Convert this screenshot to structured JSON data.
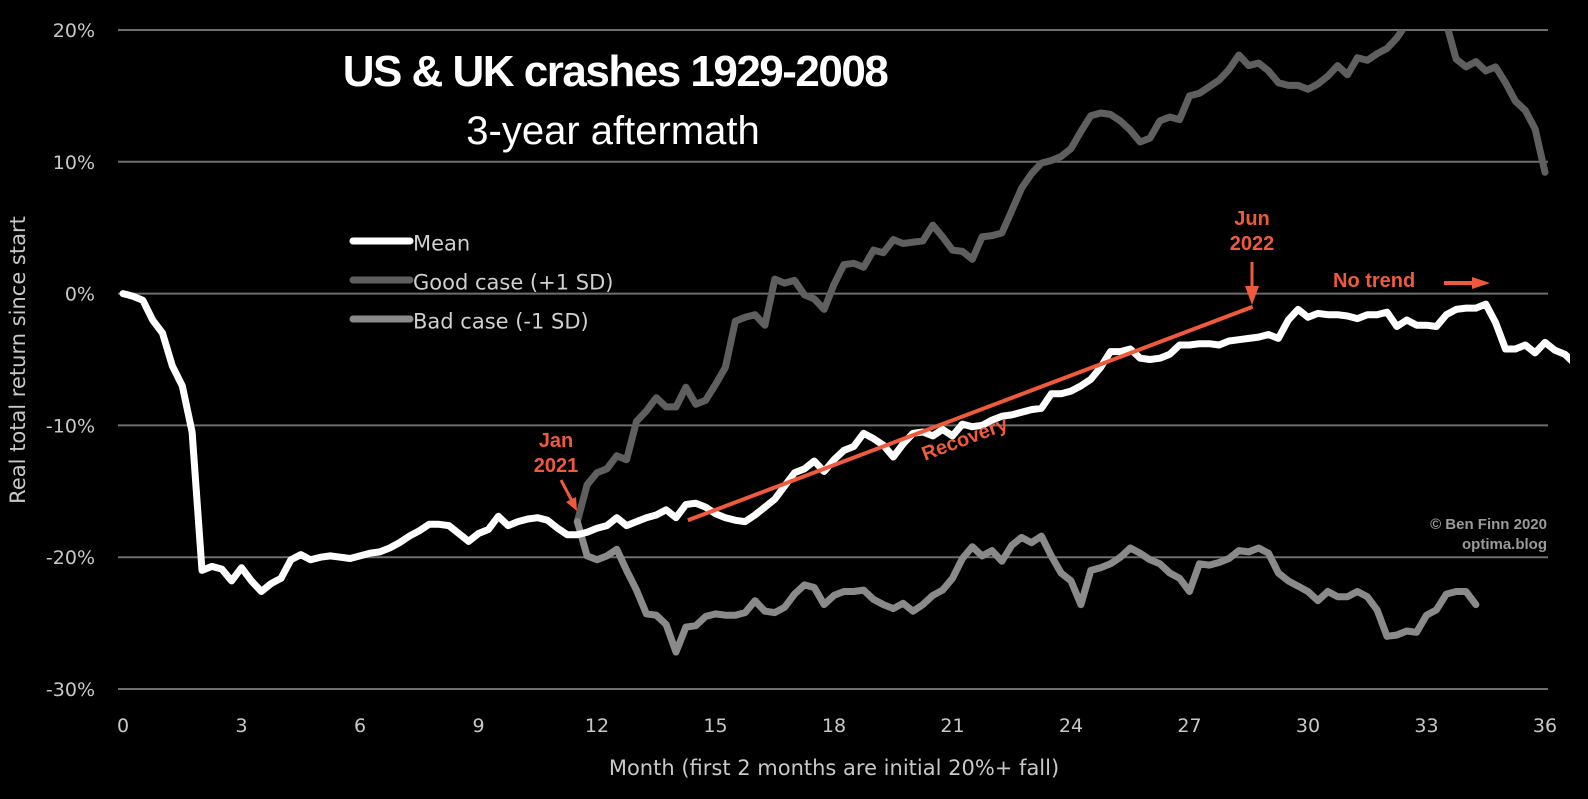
{
  "chart_data": {
    "type": "line",
    "title": "US & UK crashes 1929-2008",
    "subtitle": "3-year aftermath",
    "xlabel": "Month (first 2 months are initial 20%+ fall)",
    "ylabel": "Real total return since start",
    "xlim": [
      0,
      36
    ],
    "ylim": [
      -30,
      20
    ],
    "x_ticks": [
      "0",
      "3",
      "6",
      "9",
      "12",
      "15",
      "18",
      "21",
      "24",
      "27",
      "30",
      "33",
      "36"
    ],
    "x_tick_values": [
      0,
      3,
      6,
      9,
      12,
      15,
      18,
      21,
      24,
      27,
      30,
      33,
      36
    ],
    "y_ticks": [
      "20%",
      "10%",
      "0%",
      "-10%",
      "-20%",
      "-30%"
    ],
    "y_tick_values": [
      20,
      10,
      0,
      -10,
      -20,
      -30
    ],
    "grid": "horizontal",
    "legend": [
      {
        "label": "Mean",
        "color": "#ffffff"
      },
      {
        "label": "Good case (+1 SD)",
        "color": "#5f5f5f"
      },
      {
        "label": "Bad case (-1 SD)",
        "color": "#8a8a8a"
      }
    ],
    "legend_placement": "upper-left",
    "series": [
      {
        "name": "Mean",
        "color": "#ffffff",
        "x_start": 0,
        "x_step": 0.25,
        "values": [
          0,
          -0.2,
          -0.5,
          -2,
          -3,
          -5.5,
          -7,
          -10.5,
          -21,
          -20.7,
          -20.9,
          -21.8,
          -20.8,
          -21.8,
          -22.6,
          -22.0,
          -21.6,
          -20.2,
          -19.8,
          -20.2,
          -20.0,
          -19.9,
          -20.0,
          -20.1,
          -19.9,
          -19.7,
          -19.6,
          -19.3,
          -18.9,
          -18.4,
          -18.0,
          -17.5,
          -17.5,
          -17.6,
          -18.2,
          -18.8,
          -18.2,
          -17.9,
          -16.9,
          -17.6,
          -17.3,
          -17.1,
          -17.0,
          -17.2,
          -17.8,
          -18.3,
          -18.3,
          -18.1,
          -17.8,
          -17.6,
          -17.0,
          -17.6,
          -17.3,
          -17.0,
          -16.8,
          -16.4,
          -17.0,
          -16.0,
          -15.9,
          -16.2,
          -16.7,
          -17.0,
          -17.2,
          -17.3,
          -16.8,
          -16.2,
          -15.6,
          -14.6,
          -13.6,
          -13.3,
          -12.7,
          -13.5,
          -12.6,
          -11.9,
          -11.6,
          -10.6,
          -11.0,
          -11.5,
          -12.4,
          -11.4,
          -10.6,
          -10.5,
          -10.8,
          -10.3,
          -10.8,
          -9.9,
          -10.1,
          -10.0,
          -9.6,
          -9.3,
          -9.2,
          -9.0,
          -8.8,
          -8.7,
          -7.6,
          -7.6,
          -7.4,
          -7.0,
          -6.5,
          -5.6,
          -4.4,
          -4.4,
          -4.2,
          -4.9,
          -5.0,
          -4.9,
          -4.6,
          -3.9,
          -3.9,
          -3.8,
          -3.8,
          -3.9,
          -3.6,
          -3.5,
          -3.4,
          -3.3,
          -3.1,
          -3.4,
          -2.0,
          -1.2,
          -1.8,
          -1.5,
          -1.6,
          -1.6,
          -1.7,
          -1.9,
          -1.6,
          -1.6,
          -1.4,
          -2.5,
          -2.0,
          -2.4,
          -2.4,
          -2.5,
          -1.6,
          -1.2,
          -1.1,
          -1.1,
          -0.8,
          -2.2,
          -4.2,
          -4.2,
          -3.9,
          -4.5,
          -3.7,
          -4.3,
          -4.6,
          -5.3,
          -7.4
        ]
      },
      {
        "name": "Good case (+1 SD)",
        "color": "#5f5f5f",
        "x_start": 11.5,
        "x_step": 0.25,
        "values": [
          -17.3,
          -14.5,
          -13.6,
          -13.3,
          -12.3,
          -12.6,
          -9.7,
          -8.9,
          -7.9,
          -8.6,
          -8.6,
          -7.1,
          -8.4,
          -8.1,
          -6.9,
          -5.6,
          -2.1,
          -1.8,
          -1.6,
          -2.4,
          1.1,
          0.8,
          1.0,
          -0.1,
          -0.4,
          -1.2,
          0.7,
          2.2,
          2.3,
          2.0,
          3.3,
          3.1,
          4.1,
          3.8,
          3.9,
          4.0,
          5.2,
          4.3,
          3.3,
          3.2,
          2.6,
          4.3,
          4.4,
          4.6,
          6.3,
          8.0,
          9.1,
          9.9,
          10.1,
          10.4,
          11.0,
          12.3,
          13.5,
          13.7,
          13.6,
          13.1,
          12.4,
          11.5,
          11.8,
          13.1,
          13.4,
          13.2,
          15.0,
          15.2,
          15.7,
          16.2,
          17.0,
          18.1,
          17.3,
          17.5,
          16.9,
          16.0,
          15.8,
          15.8,
          15.5,
          15.9,
          16.5,
          17.3,
          16.6,
          17.9,
          17.7,
          18.2,
          18.6,
          19.4,
          20.5,
          22,
          23,
          22,
          20.5,
          17.8,
          17.2,
          17.6,
          16.9,
          17.2,
          16.0,
          14.6,
          13.9,
          12.5,
          9.2
        ]
      },
      {
        "name": "Bad case (-1 SD)",
        "color": "#8a8a8a",
        "x_start": 11.5,
        "x_step": 0.25,
        "values": [
          -17.3,
          -19.9,
          -20.2,
          -19.9,
          -19.4,
          -21.0,
          -22.5,
          -24.3,
          -24.4,
          -25.1,
          -27.2,
          -25.3,
          -25.2,
          -24.5,
          -24.3,
          -24.4,
          -24.4,
          -24.2,
          -23.3,
          -24.1,
          -24.2,
          -23.8,
          -22.8,
          -22.1,
          -22.3,
          -23.6,
          -22.9,
          -22.6,
          -22.6,
          -22.5,
          -23.2,
          -23.6,
          -23.9,
          -23.5,
          -24.1,
          -23.6,
          -22.9,
          -22.5,
          -21.6,
          -20.1,
          -19.2,
          -19.9,
          -19.5,
          -20.3,
          -19.1,
          -18.5,
          -18.9,
          -18.4,
          -19.9,
          -21.2,
          -21.8,
          -23.6,
          -21.0,
          -20.8,
          -20.5,
          -20.0,
          -19.3,
          -19.7,
          -20.2,
          -20.5,
          -21.2,
          -21.6,
          -22.6,
          -20.5,
          -20.6,
          -20.4,
          -20.1,
          -19.5,
          -19.6,
          -19.3,
          -19.7,
          -21.2,
          -21.8,
          -22.2,
          -22.6,
          -23.3,
          -22.6,
          -23.0,
          -23.0,
          -22.6,
          -23.0,
          -24.0,
          -26.0,
          -25.9,
          -25.6,
          -25.7,
          -24.4,
          -24.0,
          -22.8,
          -22.6,
          -22.6,
          -23.6
        ]
      }
    ],
    "annotations": [
      {
        "text_lines": [
          "Jan",
          "2021"
        ],
        "points_to_month": 11.5,
        "type": "arrow"
      },
      {
        "text_lines": [
          "Jun",
          "2022"
        ],
        "points_to_month": 28.6,
        "type": "arrow"
      },
      {
        "text": "Recovery",
        "from": [
          14.3,
          -17.2
        ],
        "to": [
          28.6,
          -1.0
        ],
        "type": "trend-line"
      },
      {
        "text": "No trend",
        "type": "arrow-right"
      }
    ],
    "accent_color": "#f05a3c"
  },
  "credit": {
    "line1": "© Ben Finn 2020",
    "line2": "optima.blog"
  }
}
